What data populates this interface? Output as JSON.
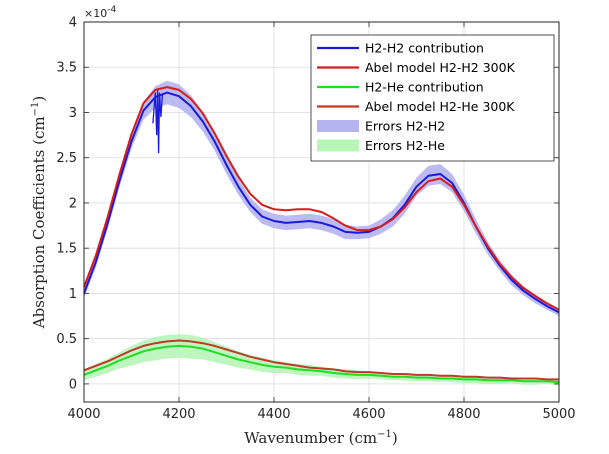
{
  "chart_data": {
    "type": "line",
    "title": "",
    "xlabel": "Wavenumber (cm",
    "xlabel_sup": "−1",
    "xlabel_close": ")",
    "ylabel": "Absorption Coefficients (cm",
    "ylabel_sup": "−1",
    "ylabel_close": ")",
    "y_exponent_base": "×10",
    "y_exponent_power": "-4",
    "xlim": [
      4000,
      5000
    ],
    "ylim": [
      -0.2,
      4
    ],
    "xticks": [
      4000,
      4200,
      4400,
      4600,
      4800,
      5000
    ],
    "yticks": [
      0,
      0.5,
      1,
      1.5,
      2,
      2.5,
      3,
      3.5,
      4
    ],
    "xtick_labels": [
      "4000",
      "4200",
      "4400",
      "4600",
      "4800",
      "5000"
    ],
    "ytick_labels": [
      "0",
      "0.5",
      "1",
      "1.5",
      "2",
      "2.5",
      "3",
      "3.5",
      "4"
    ],
    "grid": true,
    "legend_position": "top-right",
    "x": [
      4000,
      4025,
      4050,
      4075,
      4100,
      4125,
      4150,
      4175,
      4200,
      4225,
      4250,
      4275,
      4300,
      4325,
      4350,
      4375,
      4400,
      4425,
      4450,
      4475,
      4500,
      4525,
      4550,
      4575,
      4600,
      4625,
      4650,
      4675,
      4700,
      4725,
      4750,
      4775,
      4800,
      4825,
      4850,
      4875,
      4900,
      4925,
      4950,
      4975,
      5000
    ],
    "series": [
      {
        "name": "H2-H2 contribution",
        "color": "#1a1adb",
        "kind": "line",
        "values": [
          1.0,
          1.35,
          1.78,
          2.25,
          2.68,
          3.02,
          3.17,
          3.22,
          3.18,
          3.07,
          2.9,
          2.68,
          2.42,
          2.18,
          1.98,
          1.85,
          1.8,
          1.78,
          1.79,
          1.8,
          1.78,
          1.74,
          1.68,
          1.67,
          1.68,
          1.74,
          1.83,
          1.98,
          2.18,
          2.3,
          2.32,
          2.22,
          2.0,
          1.74,
          1.5,
          1.31,
          1.15,
          1.03,
          0.94,
          0.86,
          0.79
        ],
        "glitch": {
          "x": [
            4145,
            4150,
            4153,
            4155,
            4157,
            4159,
            4162,
            4165
          ],
          "y": [
            2.88,
            3.22,
            2.75,
            3.25,
            2.55,
            3.22,
            2.95,
            3.2
          ]
        }
      },
      {
        "name": "Abel model H2-H2 300K",
        "color": "#d81b1b",
        "kind": "line",
        "values": [
          1.07,
          1.42,
          1.85,
          2.32,
          2.76,
          3.1,
          3.25,
          3.28,
          3.25,
          3.15,
          2.99,
          2.77,
          2.52,
          2.29,
          2.1,
          1.98,
          1.93,
          1.92,
          1.93,
          1.93,
          1.9,
          1.83,
          1.75,
          1.7,
          1.7,
          1.74,
          1.82,
          1.95,
          2.12,
          2.24,
          2.27,
          2.18,
          1.98,
          1.74,
          1.52,
          1.33,
          1.18,
          1.06,
          0.97,
          0.89,
          0.82
        ]
      },
      {
        "name": "H2-He contribution",
        "color": "#22dd22",
        "kind": "line",
        "values": [
          0.1,
          0.15,
          0.2,
          0.26,
          0.31,
          0.36,
          0.39,
          0.41,
          0.42,
          0.41,
          0.39,
          0.35,
          0.31,
          0.27,
          0.24,
          0.21,
          0.19,
          0.18,
          0.16,
          0.15,
          0.14,
          0.12,
          0.11,
          0.1,
          0.1,
          0.09,
          0.08,
          0.08,
          0.07,
          0.07,
          0.06,
          0.06,
          0.05,
          0.05,
          0.04,
          0.04,
          0.04,
          0.03,
          0.03,
          0.03,
          0.02
        ]
      },
      {
        "name": "Abel model H2-He 300K",
        "color": "#c0392b",
        "kind": "line",
        "values": [
          0.15,
          0.2,
          0.25,
          0.31,
          0.37,
          0.42,
          0.45,
          0.47,
          0.48,
          0.47,
          0.45,
          0.42,
          0.38,
          0.34,
          0.3,
          0.27,
          0.24,
          0.22,
          0.2,
          0.18,
          0.17,
          0.16,
          0.14,
          0.13,
          0.13,
          0.12,
          0.11,
          0.11,
          0.1,
          0.1,
          0.09,
          0.09,
          0.08,
          0.08,
          0.07,
          0.07,
          0.06,
          0.06,
          0.06,
          0.05,
          0.05
        ]
      },
      {
        "name": "Errors H2-H2",
        "color": "#b4b4f0",
        "kind": "band",
        "upper": [
          1.05,
          1.41,
          1.84,
          2.32,
          2.76,
          3.12,
          3.29,
          3.35,
          3.31,
          3.19,
          3.01,
          2.78,
          2.52,
          2.27,
          2.06,
          1.93,
          1.88,
          1.86,
          1.87,
          1.88,
          1.86,
          1.82,
          1.76,
          1.74,
          1.75,
          1.82,
          1.92,
          2.08,
          2.28,
          2.41,
          2.43,
          2.32,
          2.09,
          1.82,
          1.57,
          1.37,
          1.21,
          1.08,
          0.99,
          0.9,
          0.83
        ],
        "lower": [
          0.95,
          1.29,
          1.72,
          2.18,
          2.6,
          2.92,
          3.05,
          3.09,
          3.05,
          2.95,
          2.79,
          2.58,
          2.32,
          2.09,
          1.9,
          1.77,
          1.72,
          1.7,
          1.71,
          1.72,
          1.7,
          1.66,
          1.6,
          1.6,
          1.61,
          1.66,
          1.74,
          1.88,
          2.08,
          2.19,
          2.21,
          2.12,
          1.91,
          1.66,
          1.43,
          1.25,
          1.09,
          0.98,
          0.89,
          0.82,
          0.75
        ]
      },
      {
        "name": "Errors H2-He",
        "color": "#b8f5b8",
        "kind": "band",
        "upper": [
          0.16,
          0.22,
          0.28,
          0.35,
          0.42,
          0.48,
          0.52,
          0.54,
          0.55,
          0.54,
          0.51,
          0.46,
          0.41,
          0.36,
          0.32,
          0.29,
          0.26,
          0.24,
          0.22,
          0.21,
          0.19,
          0.17,
          0.16,
          0.15,
          0.14,
          0.13,
          0.12,
          0.12,
          0.11,
          0.11,
          0.1,
          0.1,
          0.09,
          0.09,
          0.08,
          0.08,
          0.07,
          0.07,
          0.07,
          0.06,
          0.06
        ],
        "lower": [
          0.04,
          0.08,
          0.12,
          0.17,
          0.2,
          0.24,
          0.26,
          0.28,
          0.29,
          0.28,
          0.27,
          0.24,
          0.21,
          0.18,
          0.16,
          0.13,
          0.12,
          0.12,
          0.1,
          0.09,
          0.09,
          0.07,
          0.06,
          0.05,
          0.06,
          0.05,
          0.04,
          0.04,
          0.03,
          0.03,
          0.02,
          0.02,
          0.01,
          0.01,
          0.0,
          0.0,
          0.01,
          -0.01,
          -0.01,
          0.0,
          -0.02
        ]
      }
    ]
  }
}
